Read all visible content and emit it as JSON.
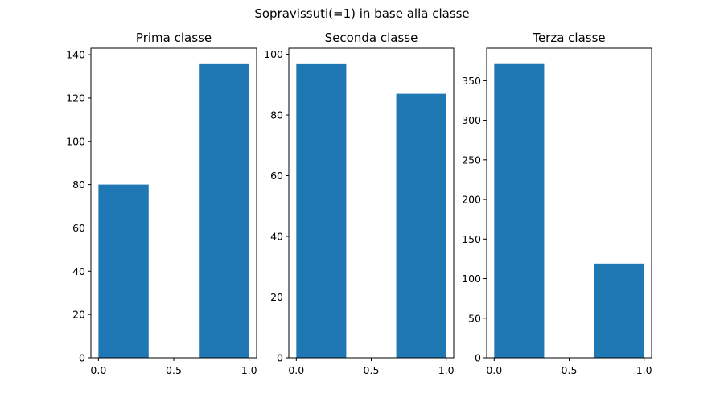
{
  "suptitle": "Sopravissuti(=1) in base alla classe",
  "colors": {
    "bar": "#1f77b4",
    "axes": "#000000"
  },
  "chart_data": [
    {
      "type": "bar",
      "title": "Prima classe",
      "xlabel": "",
      "ylabel": "",
      "xlim": [
        -0.05,
        1.05
      ],
      "ylim": [
        0,
        143
      ],
      "bars": [
        {
          "x_start": 0.0,
          "x_end": 0.3333,
          "value": 80
        },
        {
          "x_start": 0.6667,
          "x_end": 1.0,
          "value": 136
        }
      ],
      "xticks": [
        0.0,
        0.5,
        1.0
      ],
      "xtick_labels": [
        "0.0",
        "0.5",
        "1.0"
      ],
      "yticks": [
        0,
        20,
        40,
        60,
        80,
        100,
        120,
        140
      ],
      "ytick_labels": [
        "0",
        "20",
        "40",
        "60",
        "80",
        "100",
        "120",
        "140"
      ]
    },
    {
      "type": "bar",
      "title": "Seconda classe",
      "xlabel": "",
      "ylabel": "",
      "xlim": [
        -0.05,
        1.05
      ],
      "ylim": [
        0,
        102
      ],
      "bars": [
        {
          "x_start": 0.0,
          "x_end": 0.3333,
          "value": 97
        },
        {
          "x_start": 0.6667,
          "x_end": 1.0,
          "value": 87
        }
      ],
      "xticks": [
        0.0,
        0.5,
        1.0
      ],
      "xtick_labels": [
        "0.0",
        "0.5",
        "1.0"
      ],
      "yticks": [
        0,
        20,
        40,
        60,
        80,
        100
      ],
      "ytick_labels": [
        "0",
        "20",
        "40",
        "60",
        "80",
        "100"
      ]
    },
    {
      "type": "bar",
      "title": "Terza classe",
      "xlabel": "",
      "ylabel": "",
      "xlim": [
        -0.05,
        1.05
      ],
      "ylim": [
        0,
        391
      ],
      "bars": [
        {
          "x_start": 0.0,
          "x_end": 0.3333,
          "value": 372
        },
        {
          "x_start": 0.6667,
          "x_end": 1.0,
          "value": 119
        }
      ],
      "xticks": [
        0.0,
        0.5,
        1.0
      ],
      "xtick_labels": [
        "0.0",
        "0.5",
        "1.0"
      ],
      "yticks": [
        0,
        50,
        100,
        150,
        200,
        250,
        300,
        350
      ],
      "ytick_labels": [
        "0",
        "50",
        "100",
        "150",
        "200",
        "250",
        "300",
        "350"
      ]
    }
  ]
}
